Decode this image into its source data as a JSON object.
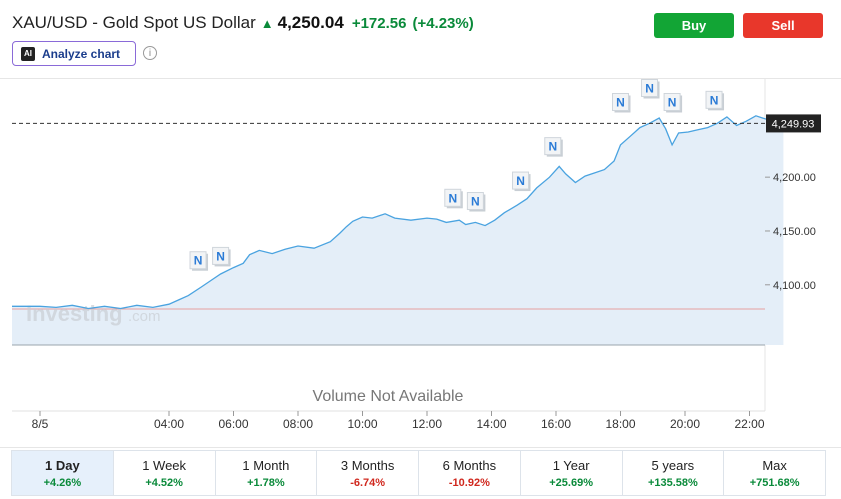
{
  "header": {
    "title": "XAU/USD - Gold Spot US Dollar",
    "price": "4,250.04",
    "change": "+172.56",
    "change_pct": "(+4.23%)",
    "direction_icon": "arrow-up-icon"
  },
  "actions": {
    "buy_label": "Buy",
    "sell_label": "Sell"
  },
  "analyze": {
    "badge": "AI",
    "label": "Analyze chart",
    "info_icon": "info-icon"
  },
  "colors": {
    "up": "#0a8a3a",
    "down": "#d0281e",
    "buy": "#12a535",
    "sell": "#e8372b",
    "line": "#4aa3e0",
    "area": "#e4eef8",
    "active_period": "#e6f0fb"
  },
  "chart": {
    "watermark_brand": "Investing",
    "watermark_suffix": ".com",
    "volume_note": "Volume Not Available",
    "current_price_label": "4,249.93"
  },
  "chart_data": {
    "type": "area",
    "title": "",
    "x_ticks": [
      "8/5",
      "04:00",
      "06:00",
      "08:00",
      "10:00",
      "12:00",
      "14:00",
      "16:00",
      "18:00",
      "20:00",
      "22:00"
    ],
    "y_ticks": [
      "4,100.00",
      "4,150.00",
      "4,200.00"
    ],
    "ylim": [
      4047,
      4283
    ],
    "xlim": [
      0,
      23.2
    ],
    "reference_line": 4077.5,
    "current_value": 4249.93,
    "series": [
      {
        "x": [
          0,
          0.5,
          1,
          1.5,
          2,
          2.5,
          3,
          3.5,
          4,
          4.3,
          4.6,
          5,
          5.3,
          5.6,
          6,
          6.3,
          6.5,
          6.8,
          7.2,
          7.6,
          8,
          8.5,
          9,
          9.3,
          9.5,
          9.7,
          10,
          10.3,
          10.7,
          11,
          11.5,
          12,
          12.3,
          12.6,
          13,
          13.2,
          13.5,
          13.8,
          14.1,
          14.4,
          14.8,
          15.1,
          15.4,
          15.8,
          16.1,
          16.3,
          16.6,
          16.9,
          17.2,
          17.5,
          17.8,
          18,
          18.3,
          18.6,
          18.9,
          19.2,
          19.4,
          19.6,
          19.8,
          20.1,
          20.4,
          20.7,
          21,
          21.3,
          21.6,
          21.9,
          22.2,
          22.5,
          22.8,
          23.05
        ],
        "values": [
          4080,
          4079,
          4081,
          4078,
          4080,
          4078,
          4081,
          4079,
          4082,
          4086,
          4090,
          4098,
          4104,
          4110,
          4116,
          4120,
          4128,
          4132,
          4129,
          4133,
          4136,
          4134,
          4140,
          4148,
          4154,
          4159,
          4163,
          4162,
          4166,
          4162,
          4160,
          4162,
          4161,
          4158,
          4160,
          4156,
          4158,
          4155,
          4160,
          4167,
          4174,
          4180,
          4190,
          4200,
          4210,
          4203,
          4195,
          4201,
          4204,
          4207,
          4215,
          4230,
          4238,
          4246,
          4250,
          4255,
          4245,
          4230,
          4241,
          4242,
          4244,
          4246,
          4250,
          4256,
          4248,
          4252,
          4257,
          4254,
          4255,
          4250
        ]
      }
    ],
    "news_markers": [
      {
        "x": 4.9,
        "value": 4101,
        "label": "N"
      },
      {
        "x": 5.6,
        "value": 4105,
        "label": "N"
      },
      {
        "x": 12.8,
        "value": 4159,
        "label": "N"
      },
      {
        "x": 13.5,
        "value": 4156,
        "label": "N"
      },
      {
        "x": 14.9,
        "value": 4175,
        "label": "N"
      },
      {
        "x": 15.9,
        "value": 4207,
        "label": "N"
      },
      {
        "x": 18.0,
        "value": 4248,
        "label": "N"
      },
      {
        "x": 18.9,
        "value": 4261,
        "label": "N"
      },
      {
        "x": 19.6,
        "value": 4248,
        "label": "N"
      },
      {
        "x": 20.9,
        "value": 4250,
        "label": "N"
      }
    ]
  },
  "periods": [
    {
      "label": "1 Day",
      "value": "+4.26%",
      "trend": "pos",
      "active": true
    },
    {
      "label": "1 Week",
      "value": "+4.52%",
      "trend": "pos",
      "active": false
    },
    {
      "label": "1 Month",
      "value": "+1.78%",
      "trend": "pos",
      "active": false
    },
    {
      "label": "3 Months",
      "value": "-6.74%",
      "trend": "neg",
      "active": false
    },
    {
      "label": "6 Months",
      "value": "-10.92%",
      "trend": "neg",
      "active": false
    },
    {
      "label": "1 Year",
      "value": "+25.69%",
      "trend": "pos",
      "active": false
    },
    {
      "label": "5 years",
      "value": "+135.58%",
      "trend": "pos",
      "active": false
    },
    {
      "label": "Max",
      "value": "+751.68%",
      "trend": "pos",
      "active": false
    }
  ]
}
